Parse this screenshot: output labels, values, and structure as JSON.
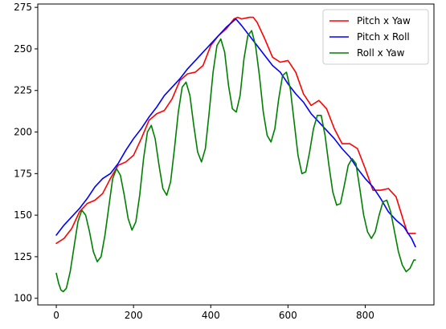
{
  "chart_data": {
    "type": "line",
    "title": "",
    "xlabel": "",
    "ylabel": "",
    "xlim": [
      -48,
      978
    ],
    "ylim": [
      96,
      277
    ],
    "xticks": [
      0,
      200,
      400,
      600,
      800
    ],
    "yticks": [
      100,
      125,
      150,
      175,
      200,
      225,
      250,
      275
    ],
    "grid": false,
    "legend_position": "top-right",
    "series": [
      {
        "name": "Pitch x Yaw",
        "color": "#ff0000",
        "points": [
          [
            0,
            133
          ],
          [
            20,
            136
          ],
          [
            40,
            142
          ],
          [
            60,
            152
          ],
          [
            80,
            157
          ],
          [
            100,
            159
          ],
          [
            120,
            163
          ],
          [
            140,
            172
          ],
          [
            160,
            180
          ],
          [
            180,
            182
          ],
          [
            200,
            186
          ],
          [
            220,
            196
          ],
          [
            240,
            207
          ],
          [
            260,
            211
          ],
          [
            280,
            213
          ],
          [
            300,
            220
          ],
          [
            320,
            231
          ],
          [
            340,
            235
          ],
          [
            360,
            236
          ],
          [
            380,
            240
          ],
          [
            400,
            252
          ],
          [
            420,
            258
          ],
          [
            440,
            262
          ],
          [
            460,
            268
          ],
          [
            470,
            269
          ],
          [
            480,
            268
          ],
          [
            500,
            269
          ],
          [
            510,
            269
          ],
          [
            520,
            266
          ],
          [
            540,
            256
          ],
          [
            560,
            245
          ],
          [
            580,
            242
          ],
          [
            600,
            243
          ],
          [
            620,
            236
          ],
          [
            640,
            223
          ],
          [
            660,
            216
          ],
          [
            680,
            219
          ],
          [
            700,
            214
          ],
          [
            720,
            202
          ],
          [
            740,
            193
          ],
          [
            760,
            193
          ],
          [
            780,
            190
          ],
          [
            800,
            178
          ],
          [
            820,
            165
          ],
          [
            840,
            165
          ],
          [
            860,
            166
          ],
          [
            880,
            161
          ],
          [
            900,
            146
          ],
          [
            910,
            139
          ],
          [
            930,
            139
          ]
        ]
      },
      {
        "name": "Pitch x Roll",
        "color": "#0000ff",
        "points": [
          [
            0,
            138
          ],
          [
            20,
            144
          ],
          [
            40,
            149
          ],
          [
            60,
            154
          ],
          [
            80,
            160
          ],
          [
            100,
            167
          ],
          [
            120,
            172
          ],
          [
            140,
            175
          ],
          [
            160,
            181
          ],
          [
            180,
            189
          ],
          [
            200,
            196
          ],
          [
            220,
            202
          ],
          [
            240,
            209
          ],
          [
            260,
            215
          ],
          [
            280,
            222
          ],
          [
            300,
            227
          ],
          [
            320,
            232
          ],
          [
            340,
            238
          ],
          [
            360,
            243
          ],
          [
            380,
            248
          ],
          [
            400,
            253
          ],
          [
            420,
            258
          ],
          [
            440,
            263
          ],
          [
            465,
            268
          ],
          [
            480,
            264
          ],
          [
            500,
            258
          ],
          [
            520,
            252
          ],
          [
            540,
            246
          ],
          [
            560,
            240
          ],
          [
            580,
            236
          ],
          [
            600,
            229
          ],
          [
            620,
            223
          ],
          [
            640,
            218
          ],
          [
            660,
            211
          ],
          [
            680,
            206
          ],
          [
            700,
            201
          ],
          [
            720,
            196
          ],
          [
            740,
            190
          ],
          [
            760,
            185
          ],
          [
            780,
            178
          ],
          [
            800,
            172
          ],
          [
            820,
            167
          ],
          [
            840,
            160
          ],
          [
            860,
            152
          ],
          [
            880,
            147
          ],
          [
            900,
            143
          ],
          [
            920,
            136
          ],
          [
            930,
            131
          ]
        ]
      },
      {
        "name": "Roll x Yaw",
        "color": "#008000",
        "points": [
          [
            0,
            115
          ],
          [
            6,
            109
          ],
          [
            12,
            105
          ],
          [
            18,
            104
          ],
          [
            26,
            106
          ],
          [
            36,
            116
          ],
          [
            46,
            131
          ],
          [
            56,
            146
          ],
          [
            66,
            153
          ],
          [
            76,
            150
          ],
          [
            86,
            140
          ],
          [
            96,
            128
          ],
          [
            106,
            122
          ],
          [
            116,
            125
          ],
          [
            126,
            138
          ],
          [
            136,
            155
          ],
          [
            146,
            172
          ],
          [
            156,
            178
          ],
          [
            166,
            174
          ],
          [
            176,
            162
          ],
          [
            186,
            148
          ],
          [
            196,
            141
          ],
          [
            206,
            146
          ],
          [
            216,
            162
          ],
          [
            226,
            184
          ],
          [
            236,
            200
          ],
          [
            246,
            204
          ],
          [
            256,
            196
          ],
          [
            266,
            180
          ],
          [
            276,
            166
          ],
          [
            286,
            162
          ],
          [
            296,
            170
          ],
          [
            306,
            190
          ],
          [
            316,
            212
          ],
          [
            326,
            227
          ],
          [
            336,
            230
          ],
          [
            346,
            222
          ],
          [
            356,
            204
          ],
          [
            366,
            188
          ],
          [
            376,
            182
          ],
          [
            386,
            190
          ],
          [
            396,
            212
          ],
          [
            406,
            236
          ],
          [
            416,
            252
          ],
          [
            426,
            256
          ],
          [
            436,
            248
          ],
          [
            446,
            228
          ],
          [
            456,
            214
          ],
          [
            466,
            212
          ],
          [
            476,
            222
          ],
          [
            486,
            244
          ],
          [
            496,
            258
          ],
          [
            506,
            261
          ],
          [
            516,
            252
          ],
          [
            526,
            234
          ],
          [
            536,
            212
          ],
          [
            546,
            198
          ],
          [
            556,
            194
          ],
          [
            566,
            202
          ],
          [
            576,
            220
          ],
          [
            586,
            234
          ],
          [
            596,
            236
          ],
          [
            606,
            226
          ],
          [
            616,
            206
          ],
          [
            626,
            186
          ],
          [
            636,
            175
          ],
          [
            646,
            176
          ],
          [
            656,
            188
          ],
          [
            666,
            202
          ],
          [
            676,
            210
          ],
          [
            686,
            210
          ],
          [
            696,
            198
          ],
          [
            706,
            180
          ],
          [
            716,
            164
          ],
          [
            726,
            156
          ],
          [
            736,
            157
          ],
          [
            746,
            168
          ],
          [
            756,
            180
          ],
          [
            766,
            184
          ],
          [
            776,
            181
          ],
          [
            786,
            166
          ],
          [
            796,
            150
          ],
          [
            806,
            140
          ],
          [
            816,
            136
          ],
          [
            826,
            140
          ],
          [
            836,
            150
          ],
          [
            846,
            158
          ],
          [
            856,
            159
          ],
          [
            866,
            152
          ],
          [
            876,
            140
          ],
          [
            886,
            128
          ],
          [
            896,
            120
          ],
          [
            906,
            116
          ],
          [
            916,
            118
          ],
          [
            926,
            123
          ],
          [
            930,
            123
          ]
        ]
      }
    ]
  }
}
